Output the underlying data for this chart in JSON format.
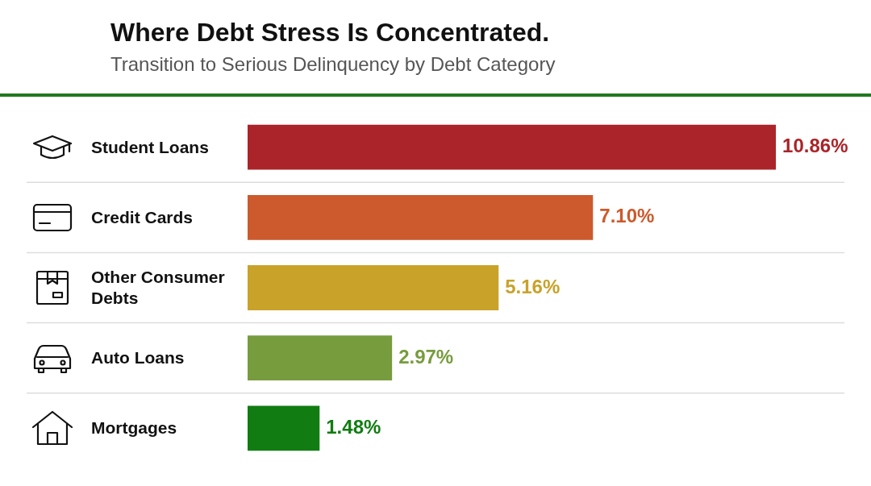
{
  "chart_data": {
    "type": "bar",
    "orientation": "horizontal",
    "title": "Where Debt Stress Is Concentrated.",
    "subtitle": "Transition to Serious Delinquency by Debt Category",
    "categories": [
      "Student Loans",
      "Credit Cards",
      "Other Consumer Debts",
      "Auto Loans",
      "Mortgages"
    ],
    "values": [
      10.86,
      7.1,
      5.16,
      2.97,
      1.48
    ],
    "colors": [
      "#ab2429",
      "#cc5a2c",
      "#c9a22a",
      "#779c3e",
      "#117c12"
    ],
    "value_labels": [
      "10.86%",
      "7.10%",
      "5.16%",
      "2.97%",
      "1.48%"
    ],
    "grid": "y",
    "legend": false
  }
}
